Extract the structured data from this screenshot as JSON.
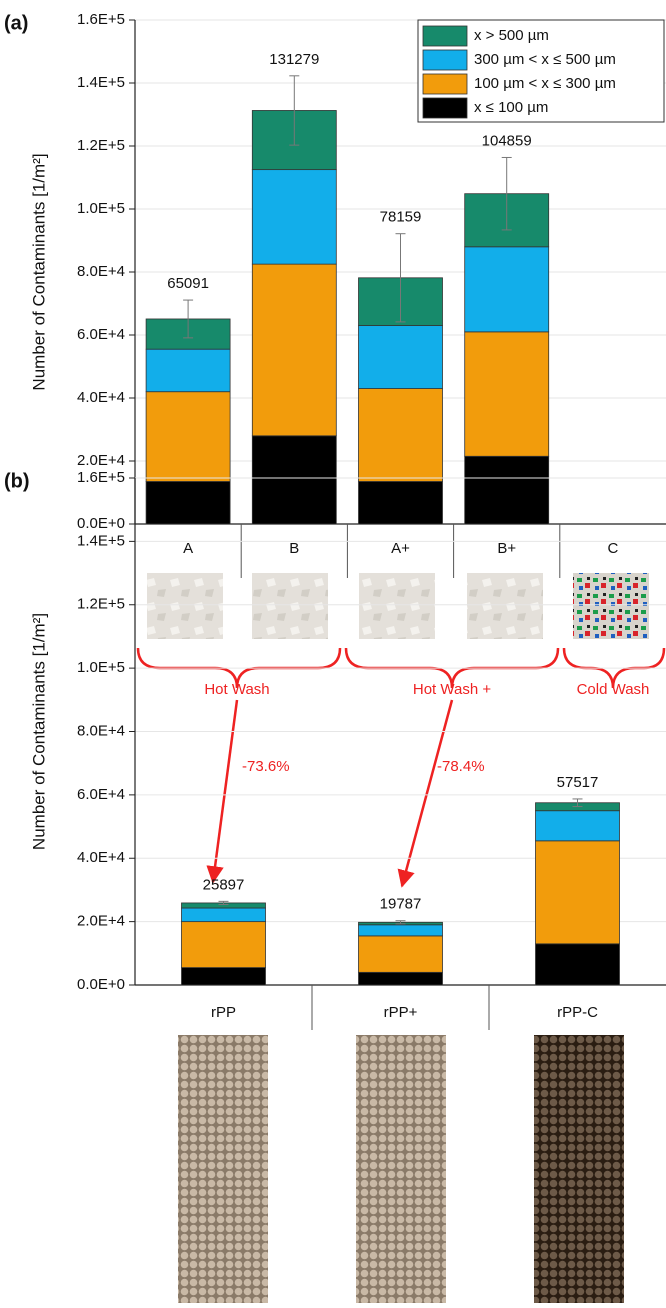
{
  "chart_data": [
    {
      "type": "bar",
      "stacked": true,
      "panel_label": "(a)",
      "ylabel": "Number of Contaminants [1/m²]",
      "categories": [
        "A",
        "B",
        "A+",
        "B+",
        "C"
      ],
      "series": [
        {
          "name": "x ≤ 100 µm",
          "color": "#000000",
          "values": [
            13500,
            28000,
            13500,
            21500,
            null
          ]
        },
        {
          "name": "100 µm < x ≤ 300 µm",
          "color": "#f29c0c",
          "values": [
            28500,
            54500,
            29500,
            39500,
            null
          ]
        },
        {
          "name": "300 µm < x ≤ 500 µm",
          "color": "#12aeea",
          "values": [
            13500,
            30000,
            20000,
            27000,
            null
          ]
        },
        {
          "name": "x > 500 µm",
          "color": "#178a6b",
          "values": [
            9591,
            18779,
            15159,
            16859,
            null
          ]
        }
      ],
      "totals": [
        65091,
        131279,
        78159,
        104859,
        null
      ],
      "errors": [
        6000,
        11000,
        14000,
        11500,
        null
      ],
      "ylim": [
        0,
        160000
      ],
      "yticks": [
        {
          "value": 0,
          "label": "0.0E+0"
        },
        {
          "value": 20000,
          "label": "2.0E+4"
        },
        {
          "value": 40000,
          "label": "4.0E+4"
        },
        {
          "value": 60000,
          "label": "6.0E+4"
        },
        {
          "value": 80000,
          "label": "8.0E+4"
        },
        {
          "value": 100000,
          "label": "1.0E+5"
        },
        {
          "value": 120000,
          "label": "1.2E+5"
        },
        {
          "value": 140000,
          "label": "1.4E+5"
        },
        {
          "value": 160000,
          "label": "1.6E+5"
        }
      ],
      "grid": true,
      "legend": "top-right"
    },
    {
      "type": "bar",
      "stacked": true,
      "panel_label": "(b)",
      "ylabel": "Number of Contaminants [1/m²]",
      "categories": [
        "rPP",
        "rPP+",
        "rPP-C"
      ],
      "series": [
        {
          "color": "#000000",
          "values": [
            5500,
            4000,
            13000
          ]
        },
        {
          "color": "#f29c0c",
          "values": [
            14500,
            11500,
            32500
          ]
        },
        {
          "color": "#12aeea",
          "values": [
            4300,
            3500,
            9500
          ]
        },
        {
          "color": "#178a6b",
          "values": [
            1597,
            787,
            2517
          ]
        }
      ],
      "totals": [
        25897,
        19787,
        57517
      ],
      "errors": [
        500,
        500,
        1200
      ],
      "ylim": [
        0,
        160000
      ],
      "yticks": [
        {
          "value": 0,
          "label": "0.0E+0"
        },
        {
          "value": 20000,
          "label": "2.0E+4"
        },
        {
          "value": 40000,
          "label": "4.0E+4"
        },
        {
          "value": 60000,
          "label": "6.0E+4"
        },
        {
          "value": 80000,
          "label": "8.0E+4"
        },
        {
          "value": 100000,
          "label": "1.0E+5"
        },
        {
          "value": 120000,
          "label": "1.2E+5"
        },
        {
          "value": 140000,
          "label": "1.4E+5"
        },
        {
          "value": 160000,
          "label": "1.6E+5"
        }
      ],
      "grid": true,
      "annotations": [
        "Hot Wash",
        "Hot Wash +",
        "Cold Wash",
        "-73.6%",
        "-78.4%"
      ]
    }
  ]
}
